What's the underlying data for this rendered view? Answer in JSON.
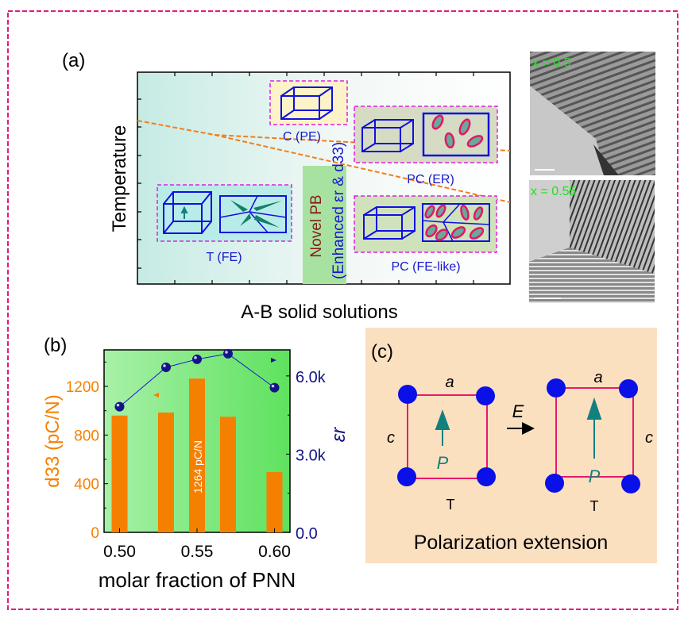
{
  "panel_a": {
    "label": "(a)",
    "ylabel": "Temperature",
    "xlabel": "A-B solid solutions",
    "phases": {
      "cubic": "C (PE)",
      "pc_er": "PC (ER)",
      "tetragonal": "T (FE)",
      "pc_fe": "PC (FE-like)"
    },
    "boundary_title": "Novel PB",
    "boundary_note": "(Enhanced εr & d33)",
    "micrographs": [
      {
        "label": "x = 0.5"
      },
      {
        "label": "x = 0.55"
      }
    ],
    "colors": {
      "phase_line": "#f07f1a",
      "box_border": "#e020e0",
      "cell": "#1010e0",
      "pb_band": "#a8e2a0"
    }
  },
  "panel_b": {
    "label": "(b)",
    "annotation": "1264 pC/N"
  },
  "chart_data": {
    "type": "bar",
    "xlabel": "molar fraction of PNN",
    "ylabel_left": "d33 (pC/N)",
    "ylabel_right": "εr",
    "x": [
      0.5,
      0.53,
      0.55,
      0.57,
      0.6
    ],
    "xlim": [
      0.49,
      0.61
    ],
    "xticks": [
      "0.50",
      "0.55",
      "0.60"
    ],
    "series": [
      {
        "name": "d33 (pC/N)",
        "type": "bar",
        "axis": "left",
        "color": "#f58000",
        "values": [
          960,
          985,
          1264,
          950,
          495
        ]
      },
      {
        "name": "εr",
        "type": "line",
        "axis": "right",
        "color": "#141486",
        "values": [
          4820,
          6330,
          6640,
          6850,
          5550
        ]
      }
    ],
    "ylim_left": [
      0,
      1500
    ],
    "yticks_left": [
      "0",
      "400",
      "800",
      "1200"
    ],
    "ylim_right": [
      0,
      7000
    ],
    "yticks_right": [
      "0.0",
      "3.0k",
      "6.0k"
    ],
    "grid": false
  },
  "panel_c": {
    "label": "(c)",
    "a_label": "a",
    "c_label": "c",
    "p_label": "P",
    "t_label": "T",
    "field_label": "E",
    "caption": "Polarization extension"
  },
  "colors": {
    "frame": "#e8187c"
  }
}
